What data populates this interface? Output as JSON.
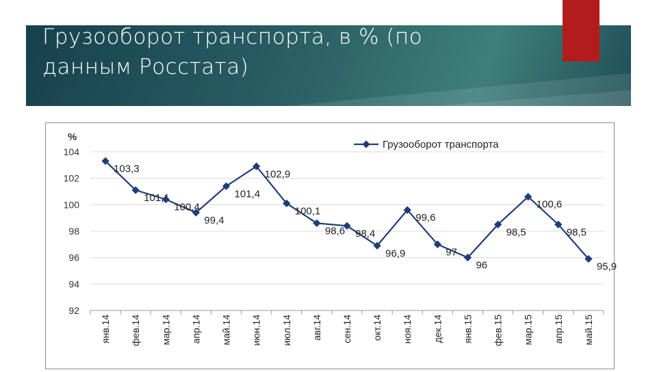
{
  "slide": {
    "title": "Грузооборот транспорта, в % (по данным Росстата)"
  },
  "colors": {
    "banner": "#17414c",
    "accent": "#b31c1c",
    "series": "#1f3d7a"
  },
  "chart_data": {
    "type": "line",
    "ylabel": "%",
    "ylim": [
      92,
      104
    ],
    "yticks": [
      92,
      94,
      96,
      98,
      100,
      102,
      104
    ],
    "grid": true,
    "legend_position": "top-right",
    "categories": [
      "янв.14",
      "фев.14",
      "мар.14",
      "апр.14",
      "май.14",
      "июн.14",
      "июл.14",
      "авг.14",
      "сен.14",
      "окт.14",
      "ноя.14",
      "дек.14",
      "янв.15",
      "фев.15",
      "мар.15",
      "апр.15",
      "май.15"
    ],
    "series": [
      {
        "name": "Грузооборот транспорта",
        "values": [
          103.3,
          101.1,
          100.4,
          99.4,
          101.4,
          102.9,
          100.1,
          98.6,
          98.4,
          96.9,
          99.6,
          97,
          96,
          98.5,
          100.6,
          98.5,
          95.9
        ],
        "labels": [
          "103,3",
          "101,1",
          "100,4",
          "99,4",
          "101,4",
          "102,9",
          "100,1",
          "98,6",
          "98,4",
          "96,9",
          "99,6",
          "97",
          "96",
          "98,5",
          "100,6",
          "98,5",
          "95,9"
        ]
      }
    ]
  }
}
